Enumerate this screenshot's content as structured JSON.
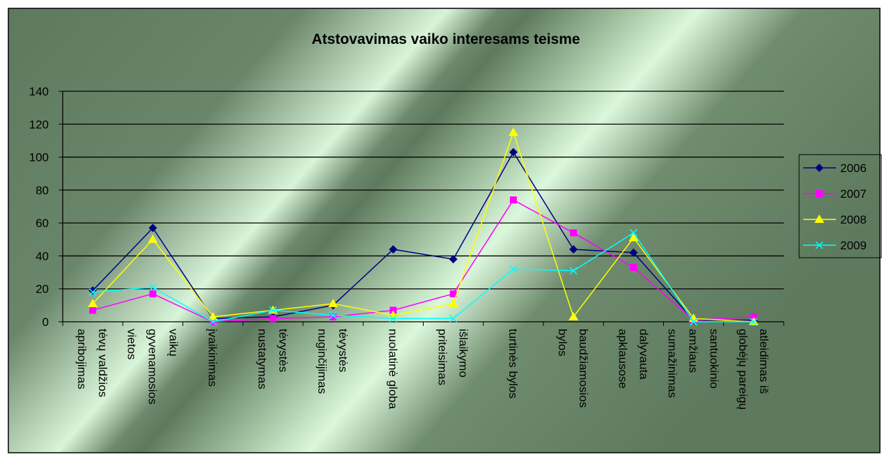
{
  "chart_data": {
    "type": "line",
    "title": "Atstovavimas vaiko interesams teisme",
    "categories": [
      "tėvų valdžios apribojimas",
      "vaikų gyvenamosios vietos",
      "įvaikinimas",
      "tėvystės nustatymas",
      "tėvystės nuginčijimas",
      "nuolatinė globa",
      "išlaikymo priteisimas",
      "turtinės bylos",
      "baudžiamosios bylos",
      "dalyvauta apklausose",
      "santuokinio amžiaus sumažinimas",
      "atleidimas iš globėjų pareigų"
    ],
    "series": [
      {
        "name": "2006",
        "color": "#000080",
        "marker": "diamond",
        "values": [
          19,
          57,
          2,
          3,
          10,
          44,
          38,
          103,
          44,
          42,
          1,
          1
        ]
      },
      {
        "name": "2007",
        "color": "#ff00ff",
        "marker": "square",
        "values": [
          7,
          17,
          0,
          2,
          3,
          7,
          17,
          74,
          54,
          33,
          1,
          3
        ]
      },
      {
        "name": "2008",
        "color": "#ffff00",
        "marker": "triangle",
        "values": [
          11,
          50,
          3,
          7,
          11,
          4,
          11,
          115,
          3,
          51,
          2,
          0
        ]
      },
      {
        "name": "2009",
        "color": "#00ffff",
        "marker": "x",
        "values": [
          18,
          21,
          0,
          7,
          4,
          2,
          2,
          32,
          31,
          54,
          0,
          0
        ]
      }
    ],
    "ylim": [
      0,
      140
    ],
    "yticks": [
      0,
      20,
      40,
      60,
      80,
      100,
      120,
      140
    ],
    "grid": true,
    "legend": "right"
  }
}
